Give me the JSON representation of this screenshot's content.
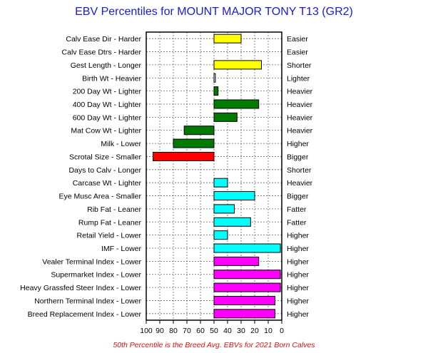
{
  "chart_data": {
    "type": "bar",
    "orientation": "horizontal",
    "title": "EBV Percentiles for MOUNT MAJOR TONY T13 (GR2)",
    "footnote": "50th Percentile is the Breed Avg. EBVs for 2021 Born Calves",
    "xlim": [
      100,
      0
    ],
    "x_reversed": true,
    "baseline": 50,
    "xticks": [
      100,
      90,
      80,
      70,
      60,
      50,
      40,
      30,
      20,
      10,
      0
    ],
    "grid": true,
    "traits": [
      {
        "label": "Calv Ease Dir - Harder",
        "right_label": "Easier",
        "value": 30,
        "color": "#ffff00"
      },
      {
        "label": "Calv Ease Dtrs - Harder",
        "right_label": "Easier",
        "value": null,
        "color": "#ffff00"
      },
      {
        "label": "Gest Length - Longer",
        "right_label": "Shorter",
        "value": 15,
        "color": "#ffff00"
      },
      {
        "label": "Birth Wt - Heavier",
        "right_label": "Lighter",
        "value": 49,
        "color": "#ffffff"
      },
      {
        "label": "200 Day Wt - Lighter",
        "right_label": "Heavier",
        "value": 47,
        "color": "#007a00"
      },
      {
        "label": "400 Day Wt - Lighter",
        "right_label": "Heavier",
        "value": 17,
        "color": "#007a00"
      },
      {
        "label": "600 Day Wt - Lighter",
        "right_label": "Heavier",
        "value": 33,
        "color": "#007a00"
      },
      {
        "label": "Mat Cow Wt - Lighter",
        "right_label": "Heavier",
        "value": 72,
        "color": "#007a00"
      },
      {
        "label": "Milk - Lower",
        "right_label": "Higher",
        "value": 80,
        "color": "#007a00"
      },
      {
        "label": "Scrotal Size - Smaller",
        "right_label": "Bigger",
        "value": 95,
        "color": "#ff0000"
      },
      {
        "label": "Days to Calv - Longer",
        "right_label": "Shorter",
        "value": null,
        "color": "#ff0000"
      },
      {
        "label": "Carcase Wt - Lighter",
        "right_label": "Heavier",
        "value": 40,
        "color": "#00ffff"
      },
      {
        "label": "Eye Musc Area - Smaller",
        "right_label": "Bigger",
        "value": 20,
        "color": "#00ffff"
      },
      {
        "label": "Rib Fat - Leaner",
        "right_label": "Fatter",
        "value": 35,
        "color": "#00ffff"
      },
      {
        "label": "Rump Fat - Leaner",
        "right_label": "Fatter",
        "value": 23,
        "color": "#00ffff"
      },
      {
        "label": "Retail Yield - Lower",
        "right_label": "Higher",
        "value": 40,
        "color": "#00ffff"
      },
      {
        "label": "IMF - Lower",
        "right_label": "Higher",
        "value": 1,
        "color": "#00ffff"
      },
      {
        "label": "Vealer Terminal Index - Lower",
        "right_label": "Higher",
        "value": 17,
        "color": "#ff00ff"
      },
      {
        "label": "Supermarket Index - Lower",
        "right_label": "Higher",
        "value": 1,
        "color": "#ff00ff"
      },
      {
        "label": "Heavy Grassfed Steer Index - Lower",
        "right_label": "Higher",
        "value": 1,
        "color": "#ff00ff"
      },
      {
        "label": "Northern Terminal Index - Lower",
        "right_label": "Higher",
        "value": 5,
        "color": "#ff00ff"
      },
      {
        "label": "Breed Replacement Index - Lower",
        "right_label": "Higher",
        "value": 5,
        "color": "#ff00ff"
      }
    ]
  }
}
